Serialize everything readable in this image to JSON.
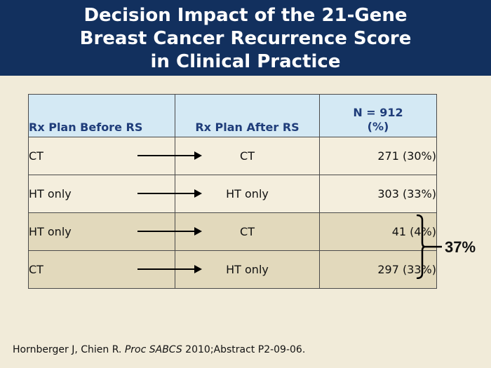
{
  "title": {
    "line1": "Decision Impact of the 21-Gene",
    "line2": "Breast Cancer Recurrence Score",
    "line3": "in Clinical Practice"
  },
  "table": {
    "headers": {
      "before": "Rx Plan Before RS",
      "after": "Rx Plan After RS",
      "n_line1": "N = 912",
      "n_line2": "(%)"
    },
    "rows": [
      {
        "before": "CT",
        "after": "CT",
        "n": "271 (30%)"
      },
      {
        "before": "HT only",
        "after": "HT only",
        "n": "303 (33%)"
      },
      {
        "before": "HT only",
        "after": "CT",
        "n": "41 (4%)"
      },
      {
        "before": "CT",
        "after": "HT only",
        "n": "297 (33%)"
      }
    ]
  },
  "bracket_total": "37%",
  "citation": {
    "authors": "Hornberger J, Chien R. ",
    "journal": "Proc SABCS",
    "rest": " 2010;Abstract P2-09-06."
  },
  "colors": {
    "header_bg": "#12305e",
    "table_header_bg": "#d4e9f4",
    "highlight_row_bg": "#e2d9bc",
    "page_bg": "#f1ebd9"
  }
}
